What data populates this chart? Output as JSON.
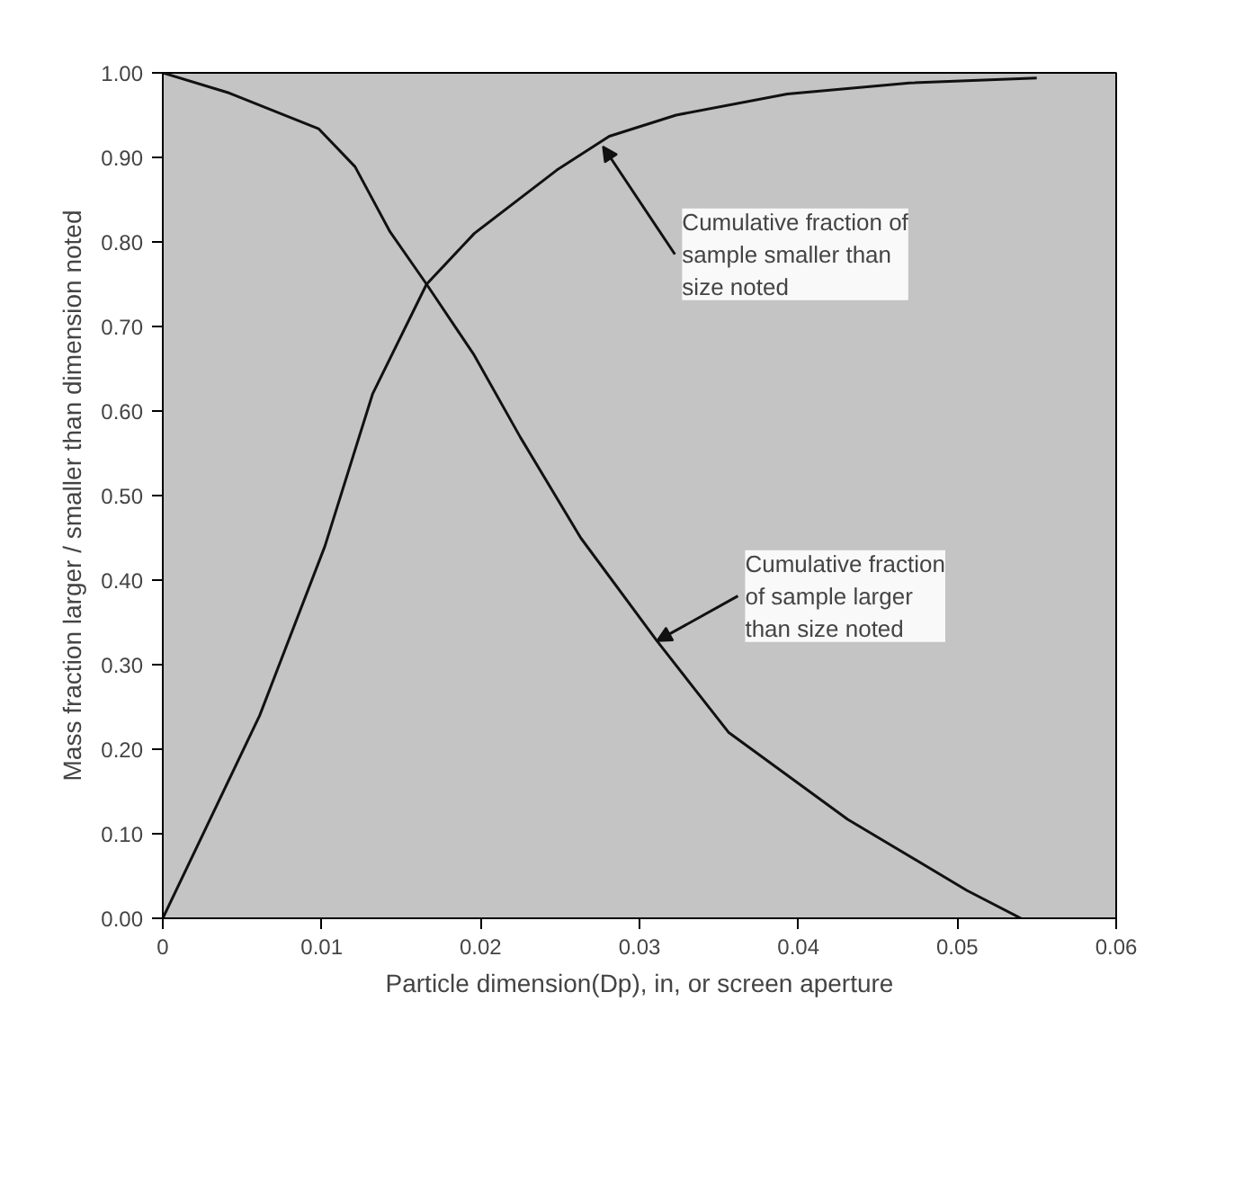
{
  "chart_data": {
    "type": "line",
    "xlabel": "Particle dimension(Dp), in, or screen aperture",
    "ylabel": "Mass fraction larger / smaller than dimension noted",
    "xlim": [
      0,
      0.06
    ],
    "xticks": [
      {
        "value": 0,
        "label": "0"
      },
      0.01,
      0.02,
      0.03,
      0.04,
      0.05,
      0.06
    ],
    "ylim": [
      0,
      1.0
    ],
    "yticks": [
      {
        "value": 0,
        "label": "0.00"
      },
      {
        "value": 0.1,
        "label": "0.10"
      },
      {
        "value": 0.2,
        "label": "0.20"
      },
      {
        "value": 0.3,
        "label": "0.30"
      },
      {
        "value": 0.4,
        "label": "0.40"
      },
      {
        "value": 0.5,
        "label": "0.50"
      },
      {
        "value": 0.6,
        "label": "0.60"
      },
      {
        "value": 0.7,
        "label": "0.70"
      },
      {
        "value": 0.8,
        "label": "0.80"
      },
      {
        "value": 0.9,
        "label": "0.90"
      },
      {
        "value": 1.0,
        "label": "1.00"
      }
    ],
    "grid": false,
    "marker": "none",
    "line_style": "solid",
    "series": [
      {
        "color": "#111111",
        "x": [
          0,
          0.0061,
          0.0102,
          0.0132,
          0.0166,
          0.0196,
          0.0248,
          0.0281,
          0.0323,
          0.0393,
          0.047,
          0.055
        ],
        "values": [
          0,
          0.24,
          0.44,
          0.62,
          0.75,
          0.81,
          0.885,
          0.925,
          0.95,
          0.975,
          0.988,
          0.994
        ]
      },
      {
        "color": "#111111",
        "x": [
          0,
          0.0042,
          0.0098,
          0.0121,
          0.0143,
          0.0166,
          0.0196,
          0.0225,
          0.0263,
          0.0311,
          0.0356,
          0.0431,
          0.0506,
          0.054
        ],
        "values": [
          1.0,
          0.976,
          0.934,
          0.889,
          0.812,
          0.75,
          0.666,
          0.569,
          0.45,
          0.328,
          0.22,
          0.117,
          0.033,
          0.0
        ]
      }
    ],
    "annotations": [
      {
        "text": "Cumulative fraction of\nsample smaller than\n    size noted",
        "x": 0.0277,
        "y": 0.913
      },
      {
        "text": "Cumulative fraction\nof sample larger\nthan size noted",
        "x": 0.0311,
        "y": 0.328
      }
    ]
  }
}
